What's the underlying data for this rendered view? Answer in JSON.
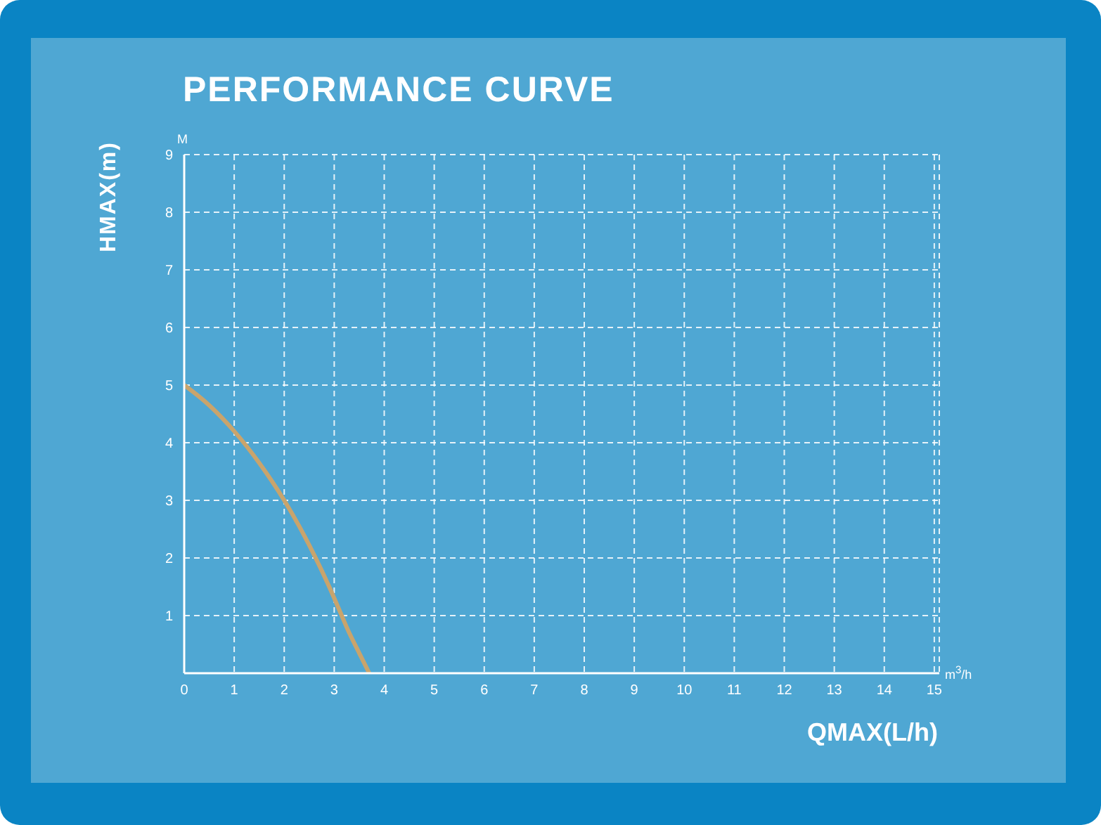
{
  "chart_data": {
    "type": "line",
    "title": "PERFORMANCE CURVE",
    "xlabel": "QMAX(L/h)",
    "ylabel": "HMAX(m)",
    "annotations": [
      "M",
      "m$^{3}$/h"
    ],
    "x": [
      0,
      0.5,
      1,
      1.5,
      2,
      2.3,
      2.6,
      2.9,
      3.1,
      3.3,
      3.5,
      3.7
    ],
    "series": [
      {
        "color": "#c9a46c",
        "values": [
          5,
          4.65,
          4.2,
          3.65,
          3,
          2.55,
          2.05,
          1.5,
          1.1,
          0.7,
          0.35,
          0
        ]
      }
    ],
    "xlim": [
      0,
      15.1
    ],
    "xticks": [
      0,
      1,
      2,
      3,
      4,
      5,
      6,
      7,
      8,
      9,
      10,
      11,
      12,
      13,
      14,
      15
    ],
    "ylim": [
      0,
      9
    ],
    "yticks": [
      {
        "value": 0,
        "label": null
      },
      1,
      2,
      3,
      4,
      5,
      6,
      7,
      8,
      9
    ],
    "grid": true,
    "marker": "none",
    "line_style": "solid",
    "legend": false
  }
}
